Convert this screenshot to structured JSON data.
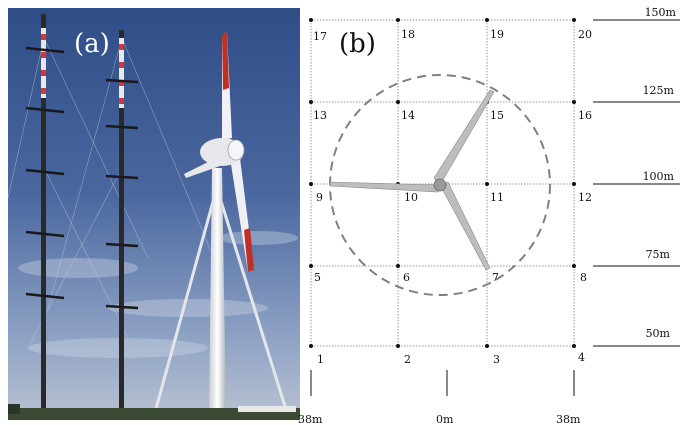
{
  "panel_a": {
    "label": "(a)"
  },
  "panel_b": {
    "label": "(b)"
  },
  "grid": {
    "point_labels": [
      "1",
      "2",
      "3",
      "4",
      "5",
      "6",
      "7",
      "8",
      "9",
      "10",
      "11",
      "12",
      "13",
      "14",
      "15",
      "16",
      "17",
      "18",
      "19",
      "20"
    ],
    "height_labels": [
      "150m",
      "125m",
      "100m",
      "75m",
      "50m"
    ],
    "width_labels": [
      "38m",
      "0m",
      "38m"
    ]
  },
  "colors": {
    "sky": "#3d5a92",
    "blade_tip": "#c03024",
    "rotor_circle": "#808080",
    "grid_line": "#9a9a9a"
  }
}
